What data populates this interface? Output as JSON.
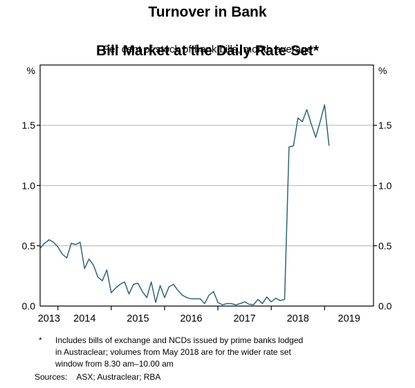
{
  "title": {
    "line1": "Turnover in Bank",
    "line2": "Bill Market at the Daily Rate Set*"
  },
  "subtitle": "Per cent of stock of bank bills, month average",
  "footnote": {
    "marker": "*",
    "text": "Includes bills of exchange and NCDs issued by prime banks lodged\nin Austraclear; volumes from May 2018 are for the wider rate set\nwindow from 8.30 am–10.00 am"
  },
  "sources": {
    "label": "Sources:",
    "value": "ASX; Austraclear; RBA"
  },
  "chart_data": {
    "type": "line",
    "title": "Turnover in Bank Bill Market at the Daily Rate Set*",
    "subtitle": "Per cent of stock of bank bills, month average",
    "unit_label": "%",
    "ylim": [
      0,
      2.0
    ],
    "yticks": [
      0,
      0.5,
      1.0,
      1.5
    ],
    "ytick_labels": [
      "0.0",
      "0.5",
      "1.0",
      "1.5"
    ],
    "xtick_labels": [
      "2013",
      "2014",
      "2015",
      "2016",
      "2017",
      "2018",
      "2019"
    ],
    "x_range": "Sep 2013 – Dec 2019",
    "axis_months": 75,
    "year_tick_month_offsets": [
      4,
      16,
      28,
      40,
      52,
      64
    ],
    "grid": "horizontal-only",
    "legend": "none",
    "line_color": "#2e6476",
    "grid_color": "#b0b0b0",
    "frame_color": "#000000",
    "series": [
      {
        "name": "Turnover at the daily rate set (per cent of stock of bank bills)",
        "frequency": "monthly",
        "start": "2013-09",
        "end": "2019-02",
        "values": [
          0.48,
          0.52,
          0.55,
          0.53,
          0.49,
          0.43,
          0.4,
          0.52,
          0.51,
          0.53,
          0.31,
          0.39,
          0.34,
          0.24,
          0.21,
          0.3,
          0.11,
          0.15,
          0.18,
          0.2,
          0.1,
          0.18,
          0.19,
          0.12,
          0.07,
          0.2,
          0.03,
          0.17,
          0.07,
          0.16,
          0.18,
          0.13,
          0.09,
          0.07,
          0.06,
          0.06,
          0.06,
          0.02,
          0.09,
          0.12,
          0.03,
          0.01,
          0.02,
          0.02,
          0.01,
          0.02,
          0.035,
          0.015,
          0.01,
          0.055,
          0.02,
          0.075,
          0.035,
          0.065,
          0.045,
          0.055,
          1.32,
          1.33,
          1.56,
          1.53,
          1.63,
          1.51,
          1.4,
          1.53,
          1.67,
          1.33
        ]
      }
    ],
    "annotations": {
      "jump_note": "Series jumps in May 2018 when wider rate set window begins"
    }
  }
}
